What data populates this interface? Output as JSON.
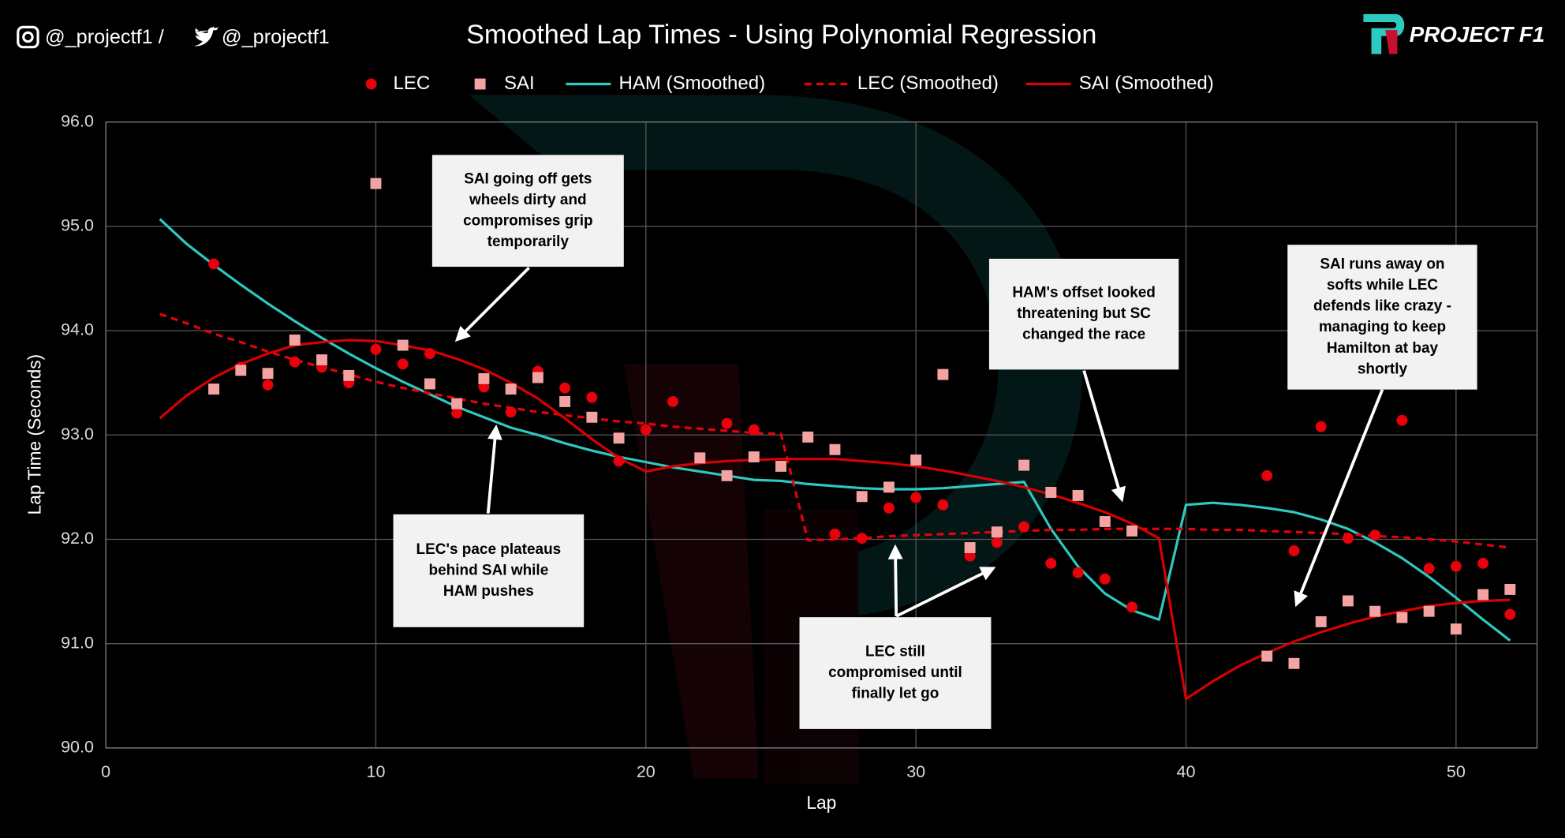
{
  "header": {
    "instagram_handle": "@_projectf1 /",
    "twitter_handle": "@_projectf1",
    "brand": "PROJECT F1"
  },
  "chart_data": {
    "type": "scatter-line",
    "title": "Smoothed Lap Times - Using Polynomial Regression",
    "x_label": "Lap",
    "y_label": "Lap Time (Seconds)",
    "xlim": [
      0,
      53
    ],
    "xticks": [
      0,
      10,
      20,
      30,
      40,
      50
    ],
    "ylim": [
      90,
      96
    ],
    "yticks": [
      {
        "value": 90,
        "label": "90.0"
      },
      {
        "value": 91,
        "label": "91.0"
      },
      {
        "value": 92,
        "label": "92.0"
      },
      {
        "value": 93,
        "label": "93.0"
      },
      {
        "value": 94,
        "label": "94.0"
      },
      {
        "value": 95,
        "label": "95.0"
      },
      {
        "value": 96,
        "label": "96.0"
      }
    ],
    "grid": true,
    "legend": "top",
    "series": [
      {
        "name": "LEC",
        "marker": "circle",
        "color": "#e8000b",
        "x": [
          4,
          5,
          6,
          7,
          8,
          9,
          10,
          11,
          12,
          13,
          14,
          15,
          16,
          17,
          18,
          19,
          20,
          21,
          23,
          24,
          27,
          28,
          29,
          30,
          31,
          32,
          33,
          34,
          35,
          36,
          37,
          38,
          43,
          44,
          45,
          46,
          47,
          48,
          49,
          50,
          51,
          52
        ],
        "values": [
          94.64,
          93.65,
          93.48,
          93.7,
          93.65,
          93.5,
          93.82,
          93.68,
          93.78,
          93.21,
          93.46,
          93.22,
          93.61,
          93.45,
          93.36,
          92.75,
          93.05,
          93.32,
          93.11,
          93.05,
          92.05,
          92.01,
          92.3,
          92.4,
          92.33,
          91.84,
          91.97,
          92.12,
          91.77,
          91.68,
          91.62,
          91.35,
          92.61,
          91.89,
          93.08,
          92.01,
          92.04,
          93.14,
          91.72,
          91.74,
          91.77,
          91.28
        ]
      },
      {
        "name": "SAI",
        "marker": "square",
        "color": "#f4a3a3",
        "x": [
          4,
          5,
          6,
          7,
          8,
          9,
          10,
          11,
          12,
          13,
          14,
          15,
          16,
          17,
          18,
          19,
          22,
          23,
          24,
          25,
          26,
          27,
          28,
          29,
          30,
          31,
          32,
          33,
          34,
          35,
          36,
          37,
          38,
          43,
          44,
          45,
          46,
          47,
          48,
          49,
          50,
          51,
          52
        ],
        "values": [
          93.44,
          93.62,
          93.59,
          93.91,
          93.72,
          93.57,
          95.41,
          93.86,
          93.49,
          93.3,
          93.54,
          93.44,
          93.55,
          93.32,
          93.17,
          92.97,
          92.78,
          92.61,
          92.79,
          92.7,
          92.98,
          92.86,
          92.41,
          92.5,
          92.76,
          93.58,
          91.92,
          92.07,
          92.71,
          92.45,
          92.42,
          92.17,
          92.08,
          90.88,
          90.81,
          91.21,
          91.41,
          91.31,
          91.25,
          91.31,
          91.14,
          91.47,
          91.52
        ]
      },
      {
        "name": "HAM (Smoothed)",
        "marker": "line",
        "dash": false,
        "color": "#2ec9c0",
        "x": [
          2,
          3,
          4,
          5,
          6,
          7,
          8,
          9,
          10,
          11,
          12,
          13,
          14,
          15,
          16,
          17,
          18,
          19,
          20,
          21,
          22,
          23,
          24,
          25,
          26,
          27,
          28,
          29,
          30,
          31,
          32,
          33,
          34,
          35,
          36,
          37,
          38,
          39,
          40,
          41,
          42,
          43,
          44,
          45,
          46,
          47,
          48,
          49,
          50,
          51,
          52
        ],
        "values": [
          95.07,
          94.83,
          94.63,
          94.44,
          94.26,
          94.09,
          93.93,
          93.78,
          93.64,
          93.51,
          93.39,
          93.27,
          93.17,
          93.07,
          93.0,
          92.92,
          92.85,
          92.79,
          92.74,
          92.69,
          92.65,
          92.61,
          92.57,
          92.56,
          92.53,
          92.51,
          92.49,
          92.48,
          92.48,
          92.49,
          92.51,
          92.53,
          92.55,
          92.1,
          91.74,
          91.48,
          91.32,
          91.23,
          92.33,
          92.35,
          92.33,
          92.3,
          92.26,
          92.19,
          92.1,
          91.97,
          91.82,
          91.64,
          91.44,
          91.23,
          91.03
        ]
      },
      {
        "name": "LEC (Smoothed)",
        "marker": "line",
        "dash": true,
        "color": "#e8000b",
        "x": [
          2,
          3,
          4,
          5,
          6,
          7,
          8,
          9,
          10,
          11,
          12,
          13,
          14,
          15,
          16,
          17,
          18,
          19,
          20,
          21,
          22,
          23,
          24,
          25,
          26,
          27,
          28,
          29,
          30,
          31,
          32,
          33,
          34,
          35,
          36,
          37,
          38,
          39,
          40,
          41,
          42,
          43,
          44,
          45,
          46,
          47,
          48,
          49,
          50,
          51,
          52
        ],
        "values": [
          94.16,
          94.07,
          93.97,
          93.89,
          93.8,
          93.72,
          93.65,
          93.58,
          93.51,
          93.45,
          93.4,
          93.35,
          93.3,
          93.26,
          93.22,
          93.19,
          93.16,
          93.13,
          93.11,
          93.08,
          93.06,
          93.04,
          93.02,
          93.01,
          91.99,
          92.0,
          92.01,
          92.03,
          92.04,
          92.05,
          92.06,
          92.07,
          92.08,
          92.09,
          92.09,
          92.1,
          92.1,
          92.1,
          92.1,
          92.09,
          92.09,
          92.08,
          92.07,
          92.06,
          92.05,
          92.03,
          92.02,
          92.0,
          91.98,
          91.95,
          91.92
        ]
      },
      {
        "name": "SAI (Smoothed)",
        "marker": "line",
        "dash": false,
        "color": "#d80000",
        "x": [
          2,
          3,
          4,
          5,
          6,
          7,
          8,
          9,
          10,
          11,
          12,
          13,
          14,
          15,
          16,
          17,
          18,
          19,
          20,
          21,
          22,
          23,
          24,
          25,
          26,
          27,
          28,
          29,
          30,
          31,
          32,
          33,
          34,
          35,
          36,
          37,
          38,
          39,
          40,
          41,
          42,
          43,
          44,
          45,
          46,
          47,
          48,
          49,
          50,
          51,
          52
        ],
        "values": [
          93.16,
          93.38,
          93.55,
          93.68,
          93.78,
          93.86,
          93.89,
          93.91,
          93.9,
          93.86,
          93.81,
          93.73,
          93.63,
          93.5,
          93.35,
          93.16,
          92.96,
          92.78,
          92.65,
          92.7,
          92.73,
          92.75,
          92.76,
          92.77,
          92.77,
          92.77,
          92.75,
          92.73,
          92.7,
          92.66,
          92.61,
          92.56,
          92.5,
          92.43,
          92.35,
          92.26,
          92.15,
          92.01,
          90.47,
          90.64,
          90.79,
          90.91,
          91.02,
          91.11,
          91.19,
          91.26,
          91.31,
          91.36,
          91.39,
          91.41,
          91.42
        ]
      }
    ],
    "annotations": [
      {
        "lines": [
          "SAI going off gets",
          "wheels dirty and",
          "compromises grip",
          "temporarily"
        ]
      },
      {
        "lines": [
          "LEC's pace plateaus",
          "behind SAI while",
          "HAM pushes"
        ]
      },
      {
        "lines": [
          "HAM's offset looked",
          "threatening but SC",
          "changed the race"
        ]
      },
      {
        "lines": [
          "SAI runs away on",
          "softs while LEC",
          "defends like crazy -",
          "managing to keep",
          "Hamilton at bay",
          "shortly"
        ]
      },
      {
        "lines": [
          "LEC still",
          "compromised until",
          "finally let go"
        ]
      }
    ]
  }
}
